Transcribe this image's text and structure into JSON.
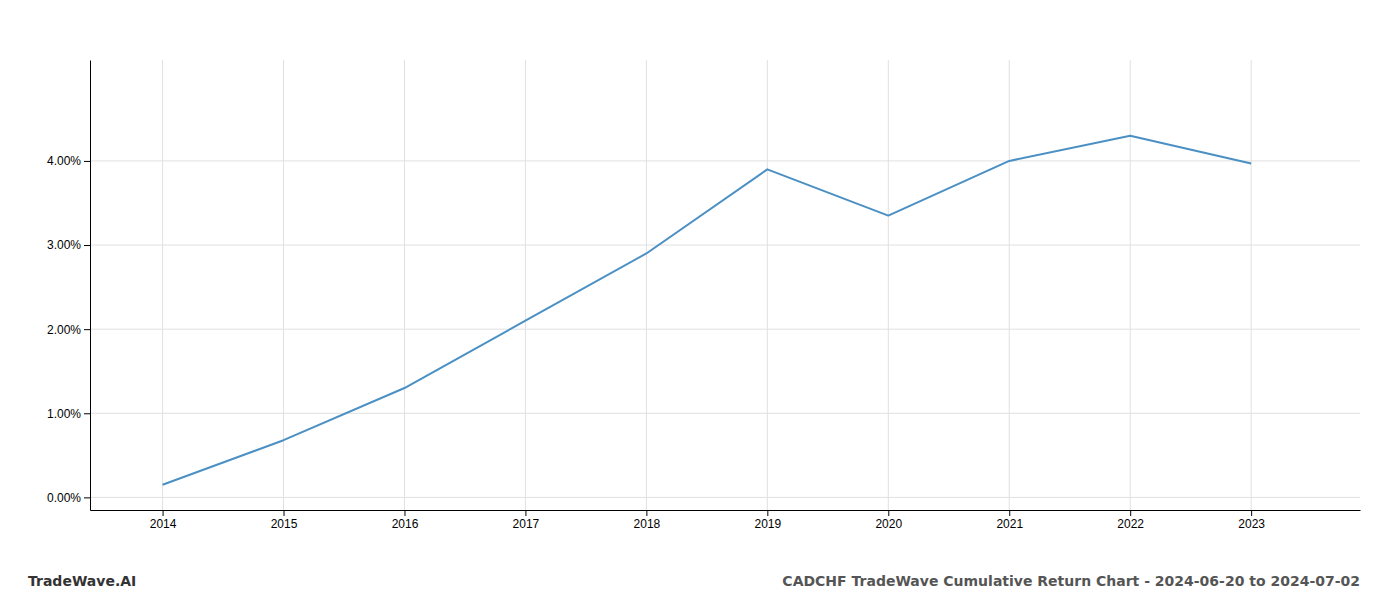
{
  "chart_data": {
    "type": "line",
    "title": "CADCHF TradeWave Cumulative Return Chart - 2024-06-20 to 2024-07-02",
    "annotations": [
      "TradeWave.AI"
    ],
    "x": [
      2014,
      2015,
      2016,
      2017,
      2018,
      2019,
      2020,
      2021,
      2022,
      2023
    ],
    "values": [
      0.0015,
      0.0068,
      0.013,
      0.021,
      0.029,
      0.039,
      0.0335,
      0.04,
      0.043,
      0.0397
    ],
    "color": "#4a90c4",
    "xlim": [
      2013.4,
      2023.9
    ],
    "ylim": [
      -0.0015,
      0.052
    ],
    "xticks": [
      2014,
      2015,
      2016,
      2017,
      2018,
      2019,
      2020,
      2021,
      2022,
      2023
    ],
    "yticks": [
      {
        "value": 0.0,
        "label": "0.00%"
      },
      {
        "value": 0.01,
        "label": "1.00%"
      },
      {
        "value": 0.02,
        "label": "2.00%"
      },
      {
        "value": 0.03,
        "label": "3.00%"
      },
      {
        "value": 0.04,
        "label": "4.00%"
      }
    ],
    "grid": true
  }
}
